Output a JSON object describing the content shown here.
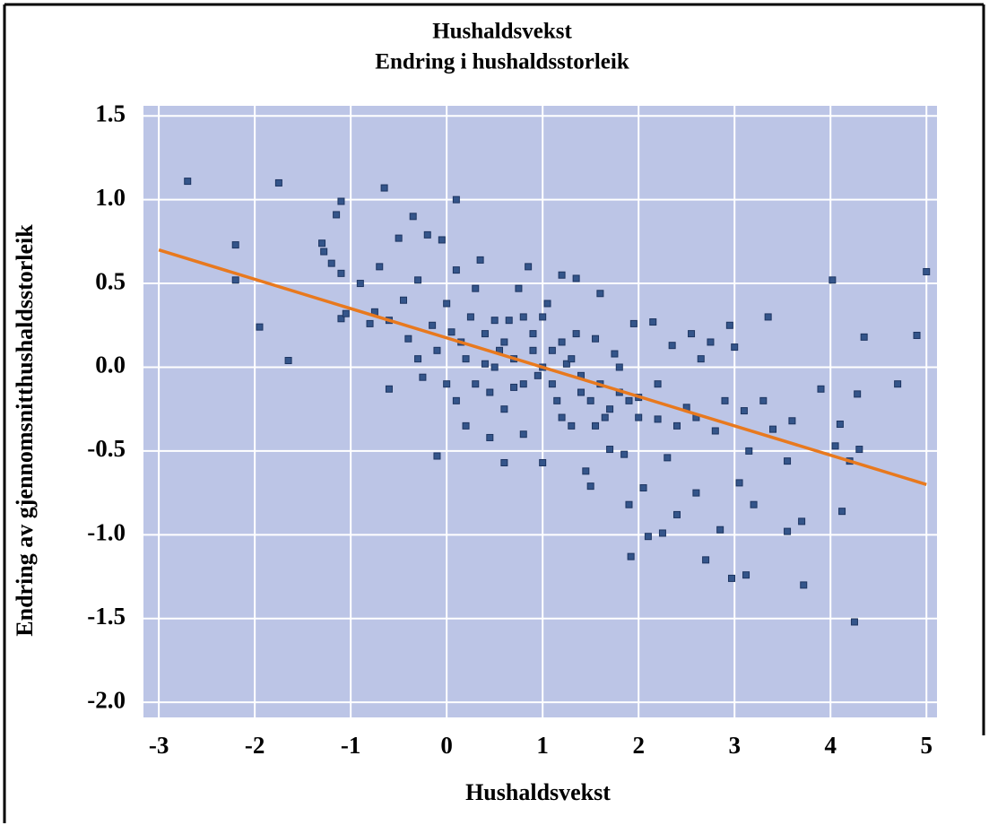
{
  "chart_data": {
    "type": "scatter",
    "title": "Hushaldsvekst",
    "subtitle": "Endring i hushaldsstorleik",
    "x_label": "Hushaldsvekst",
    "y_label": "Endring av gjennomsnitthushaldsstorleik",
    "xlim": [
      -3.16,
      5.11
    ],
    "ylim": [
      -2.09,
      1.56
    ],
    "xticks": [
      -3,
      -2,
      -1,
      0,
      1,
      2,
      3,
      4,
      5
    ],
    "yticks": [
      1.5,
      {
        "value": 1.0,
        "label": "1.0"
      },
      0.5,
      {
        "value": 0.0,
        "label": "0.0"
      },
      -0.5,
      {
        "value": -1.0,
        "label": "-1.0"
      },
      -1.5,
      {
        "value": -2.0,
        "label": "-2.0"
      }
    ],
    "grid": true,
    "background": "#bcc5e6",
    "series": [
      {
        "color": "#34558a",
        "x": [
          -2.7,
          -1.75,
          -2.2,
          -2.2,
          -1.95,
          -1.65,
          -1.1,
          -1.15,
          -1.3,
          -1.28,
          -1.2,
          -1.1,
          -1.1,
          -1.05,
          -0.9,
          -0.8,
          -0.75,
          -0.7,
          -0.65,
          -0.6,
          -0.6,
          -0.5,
          -0.45,
          -0.35,
          -0.3,
          -0.2,
          -0.4,
          -0.3,
          -0.25,
          -0.15,
          -0.1,
          -0.05,
          0,
          0.05,
          0.1,
          0.1,
          0.15,
          0.2,
          0.25,
          0.3,
          0.35,
          0.4,
          0.45,
          0.5,
          0.55,
          0.6,
          0.65,
          0.7,
          0.75,
          0.8,
          0.85,
          0.9,
          0.95,
          1.0,
          1.05,
          1.1,
          1.15,
          1.2,
          1.25,
          1.3,
          1.35,
          1.4,
          1.45,
          1.5,
          1.55,
          1.6,
          1.65,
          1.7,
          1.75,
          1.8,
          1.85,
          1.9,
          1.92,
          1.95,
          2.0,
          2.05,
          2.1,
          2.15,
          2.2,
          2.25,
          2.3,
          2.35,
          2.4,
          2.5,
          2.55,
          2.6,
          2.65,
          2.7,
          2.75,
          2.8,
          2.85,
          2.9,
          2.95,
          2.97,
          3.0,
          3.05,
          3.1,
          3.12,
          3.15,
          3.2,
          3.3,
          3.35,
          3.4,
          3.55,
          3.55,
          3.6,
          3.7,
          3.72,
          3.9,
          4.02,
          4.05,
          4.1,
          4.12,
          4.2,
          4.25,
          4.28,
          4.3,
          4.35,
          4.7,
          4.9,
          5.0,
          0.2,
          0.3,
          0.5,
          0.6,
          0.7,
          0.8,
          0.9,
          1.0,
          1.1,
          1.2,
          1.3,
          1.4,
          1.5,
          1.6,
          1.7,
          1.8,
          1.9,
          2.0,
          0.4,
          0.6,
          1.0,
          1.2,
          0.8,
          0.45,
          1.35,
          1.55,
          0.1,
          -0.1,
          0.0,
          2.2,
          2.4,
          2.6
        ],
        "values": [
          1.11,
          1.1,
          0.73,
          0.52,
          0.24,
          0.04,
          0.99,
          0.91,
          0.74,
          0.69,
          0.62,
          0.56,
          0.29,
          0.32,
          0.5,
          0.26,
          0.33,
          0.6,
          1.07,
          0.28,
          -0.13,
          0.77,
          0.4,
          0.9,
          0.52,
          0.79,
          0.17,
          0.05,
          -0.06,
          0.25,
          -0.53,
          0.76,
          0.38,
          0.21,
          1.0,
          0.58,
          0.15,
          -0.35,
          0.3,
          0.47,
          0.64,
          0.02,
          -0.42,
          0.28,
          0.1,
          -0.57,
          0.28,
          -0.12,
          0.47,
          -0.4,
          0.6,
          0.2,
          -0.05,
          -0.57,
          0.38,
          0.1,
          -0.2,
          0.55,
          0.02,
          -0.35,
          0.53,
          -0.15,
          -0.62,
          -0.71,
          0.17,
          0.44,
          -0.3,
          -0.49,
          0.08,
          -0.15,
          -0.52,
          -0.82,
          -1.13,
          0.26,
          -0.18,
          -0.72,
          -1.01,
          0.27,
          -0.31,
          -0.99,
          -0.54,
          0.13,
          -0.88,
          -0.24,
          0.2,
          -0.75,
          0.05,
          -1.15,
          0.15,
          -0.38,
          -0.97,
          -0.2,
          0.25,
          -1.26,
          0.12,
          -0.69,
          -0.26,
          -1.24,
          -0.5,
          -0.82,
          -0.2,
          0.3,
          -0.37,
          -0.56,
          -0.98,
          -0.32,
          -0.92,
          -1.3,
          -0.13,
          0.52,
          -0.47,
          -0.34,
          -0.86,
          -0.56,
          -1.52,
          -0.16,
          -0.49,
          0.18,
          -0.1,
          0.19,
          0.57,
          0.05,
          -0.1,
          0.0,
          0.15,
          0.05,
          -0.1,
          0.1,
          0.0,
          -0.1,
          0.15,
          0.05,
          -0.05,
          -0.2,
          -0.1,
          -0.25,
          0.0,
          -0.2,
          -0.3,
          0.2,
          -0.25,
          0.3,
          -0.3,
          0.3,
          -0.15,
          0.2,
          -0.35,
          -0.2,
          0.1,
          -0.1,
          -0.1,
          -0.35,
          -0.3
        ]
      }
    ],
    "trendline": {
      "type": "line",
      "color": "#e8791e",
      "x": [
        -3,
        5
      ],
      "values": [
        0.7,
        -0.7
      ]
    }
  }
}
